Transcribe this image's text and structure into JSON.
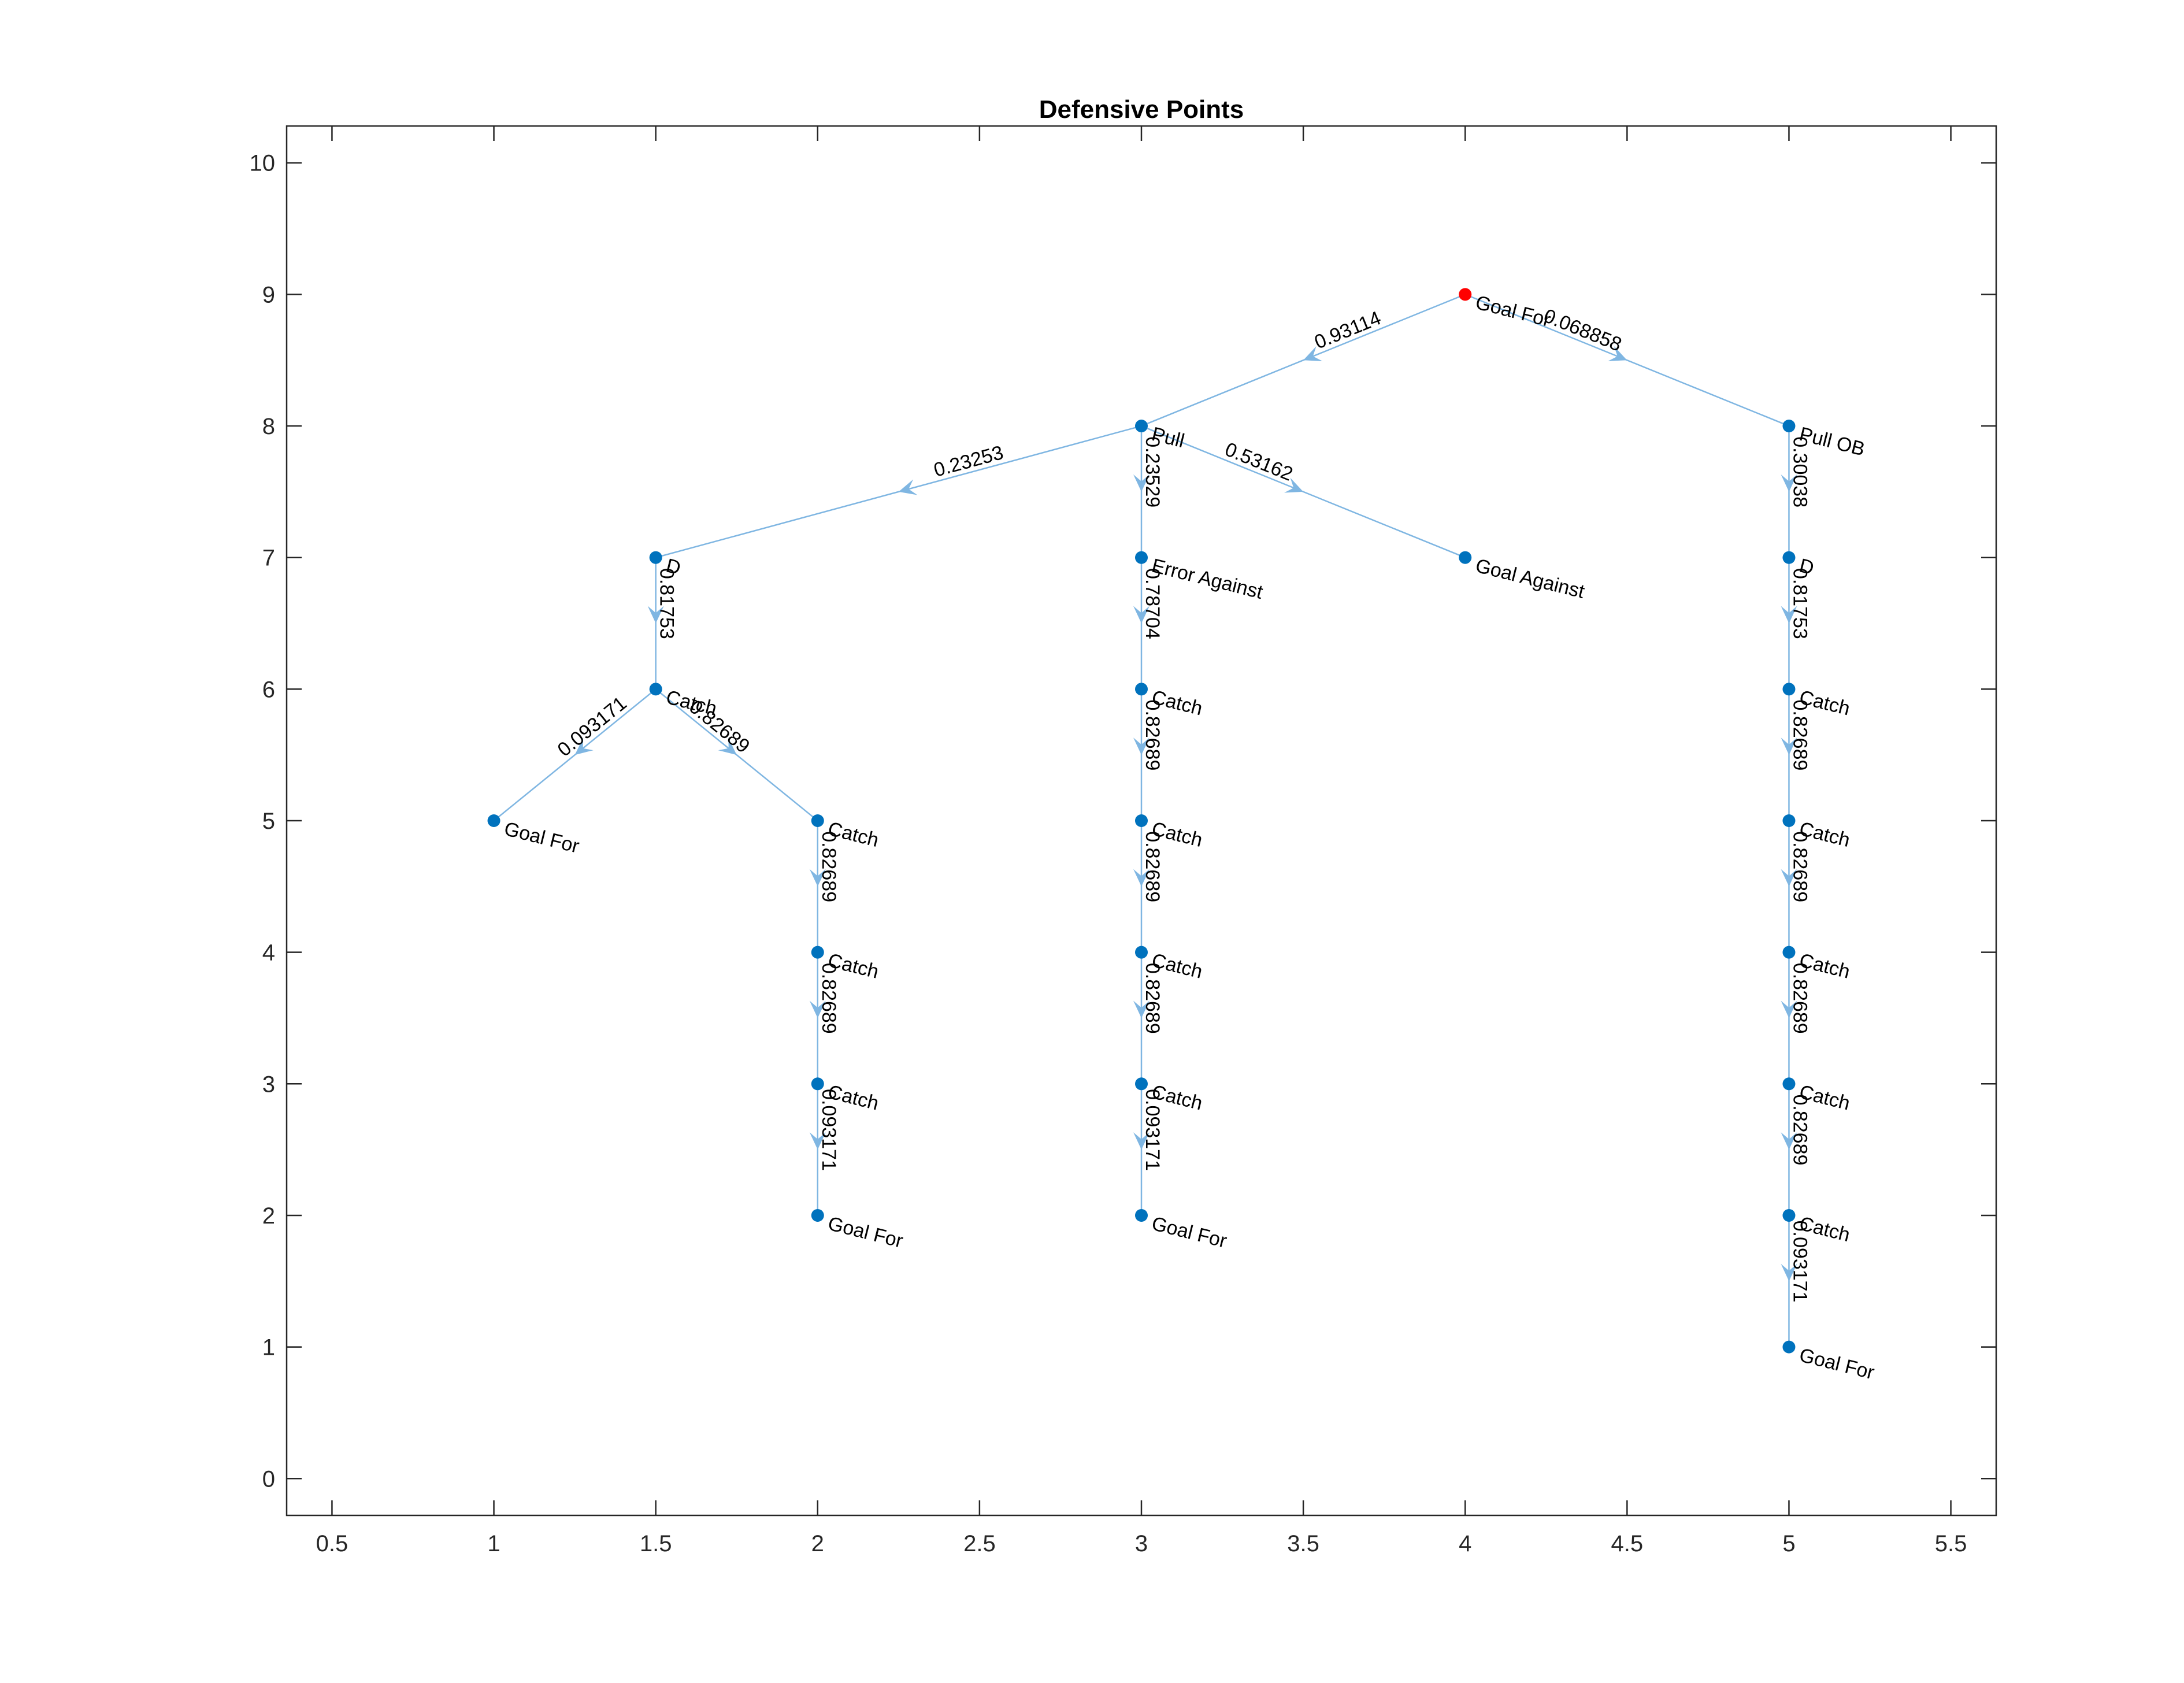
{
  "chart_data": {
    "type": "graph",
    "title": "Defensive Points",
    "xlim": [
      0.36,
      5.64
    ],
    "ylim": [
      -0.28,
      10.28
    ],
    "xticks": [
      0.5,
      1,
      1.5,
      2,
      2.5,
      3,
      3.5,
      4,
      4.5,
      5,
      5.5
    ],
    "xtick_labels": [
      "0.5",
      "1",
      "1.5",
      "2",
      "2.5",
      "3",
      "3.5",
      "4",
      "4.5",
      "5",
      "5.5"
    ],
    "yticks": [
      0,
      1,
      2,
      3,
      4,
      5,
      6,
      7,
      8,
      9,
      10
    ],
    "ytick_labels": [
      "0",
      "1",
      "2",
      "3",
      "4",
      "5",
      "6",
      "7",
      "8",
      "9",
      "10"
    ],
    "colors": {
      "node": "#0072bd",
      "root_node": "#ff0000",
      "edge": "#7fb6e2",
      "axes": "#262626"
    },
    "nodes": [
      {
        "id": "n1",
        "label": "Goal For",
        "x": 4,
        "y": 9,
        "root": true
      },
      {
        "id": "n2",
        "label": "Pull",
        "x": 3,
        "y": 8
      },
      {
        "id": "n3",
        "label": "Pull OB",
        "x": 5,
        "y": 8
      },
      {
        "id": "n4",
        "label": "D",
        "x": 1.5,
        "y": 7
      },
      {
        "id": "n5",
        "label": "Error Against",
        "x": 3,
        "y": 7
      },
      {
        "id": "n6",
        "label": "Goal Against",
        "x": 4,
        "y": 7
      },
      {
        "id": "n7",
        "label": "D",
        "x": 5,
        "y": 7
      },
      {
        "id": "n8",
        "label": "Catch",
        "x": 1.5,
        "y": 6
      },
      {
        "id": "n9",
        "label": "Catch",
        "x": 3,
        "y": 6
      },
      {
        "id": "n10",
        "label": "Catch",
        "x": 5,
        "y": 6
      },
      {
        "id": "n11",
        "label": "Goal For",
        "x": 1,
        "y": 5
      },
      {
        "id": "n12",
        "label": "Catch",
        "x": 2,
        "y": 5
      },
      {
        "id": "n13",
        "label": "Catch",
        "x": 3,
        "y": 5
      },
      {
        "id": "n14",
        "label": "Catch",
        "x": 5,
        "y": 5
      },
      {
        "id": "n15",
        "label": "Catch",
        "x": 2,
        "y": 4
      },
      {
        "id": "n16",
        "label": "Catch",
        "x": 3,
        "y": 4
      },
      {
        "id": "n17",
        "label": "Catch",
        "x": 5,
        "y": 4
      },
      {
        "id": "n18",
        "label": "Catch",
        "x": 2,
        "y": 3
      },
      {
        "id": "n19",
        "label": "Catch",
        "x": 3,
        "y": 3
      },
      {
        "id": "n20",
        "label": "Catch",
        "x": 5,
        "y": 3
      },
      {
        "id": "n21",
        "label": "Goal For",
        "x": 2,
        "y": 2
      },
      {
        "id": "n22",
        "label": "Goal For",
        "x": 3,
        "y": 2
      },
      {
        "id": "n23",
        "label": "Catch",
        "x": 5,
        "y": 2
      },
      {
        "id": "n24",
        "label": "Goal For",
        "x": 5,
        "y": 1
      }
    ],
    "edges": [
      {
        "from": "n1",
        "to": "n2",
        "label": "0.93114"
      },
      {
        "from": "n1",
        "to": "n3",
        "label": "0.068858"
      },
      {
        "from": "n2",
        "to": "n4",
        "label": "0.23253"
      },
      {
        "from": "n2",
        "to": "n5",
        "label": "0.23529"
      },
      {
        "from": "n2",
        "to": "n6",
        "label": "0.53162"
      },
      {
        "from": "n3",
        "to": "n7",
        "label": "0.30038"
      },
      {
        "from": "n4",
        "to": "n8",
        "label": "0.81753"
      },
      {
        "from": "n5",
        "to": "n9",
        "label": "0.78704"
      },
      {
        "from": "n7",
        "to": "n10",
        "label": "0.81753"
      },
      {
        "from": "n8",
        "to": "n11",
        "label": "0.093171"
      },
      {
        "from": "n8",
        "to": "n12",
        "label": "0.82689"
      },
      {
        "from": "n9",
        "to": "n13",
        "label": "0.82689"
      },
      {
        "from": "n10",
        "to": "n14",
        "label": "0.82689"
      },
      {
        "from": "n12",
        "to": "n15",
        "label": "0.82689"
      },
      {
        "from": "n13",
        "to": "n16",
        "label": "0.82689"
      },
      {
        "from": "n14",
        "to": "n17",
        "label": "0.82689"
      },
      {
        "from": "n15",
        "to": "n18",
        "label": "0.82689"
      },
      {
        "from": "n16",
        "to": "n19",
        "label": "0.82689"
      },
      {
        "from": "n17",
        "to": "n20",
        "label": "0.82689"
      },
      {
        "from": "n18",
        "to": "n21",
        "label": "0.093171"
      },
      {
        "from": "n19",
        "to": "n22",
        "label": "0.093171"
      },
      {
        "from": "n20",
        "to": "n23",
        "label": "0.82689"
      },
      {
        "from": "n23",
        "to": "n24",
        "label": "0.093171"
      }
    ]
  }
}
